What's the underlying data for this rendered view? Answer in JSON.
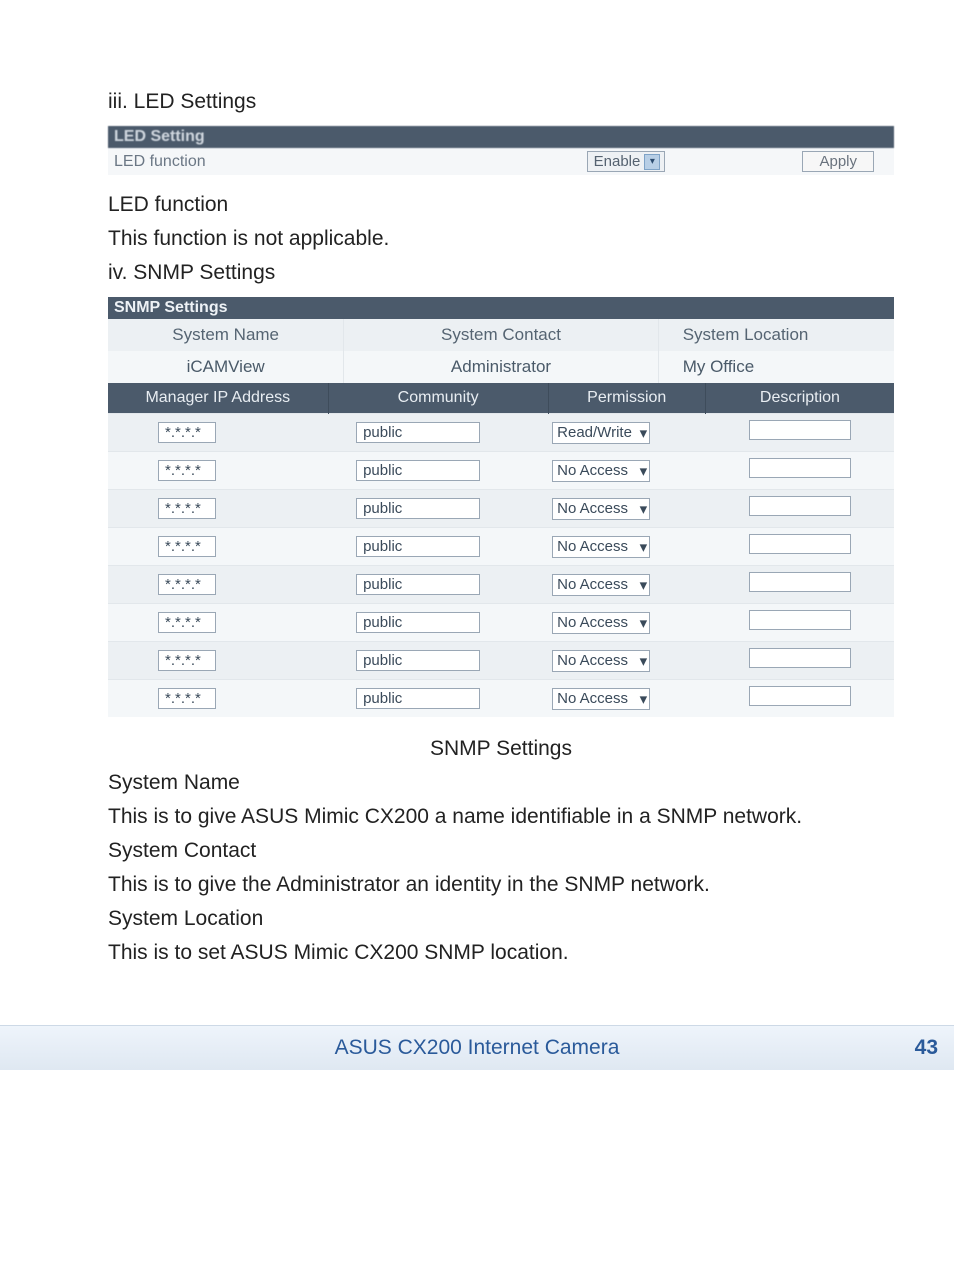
{
  "sections": {
    "led_heading": "iii. LED Settings",
    "snmp_heading": "iv. SNMP Settings"
  },
  "led_panel": {
    "header": "LED Setting",
    "row_label": "LED function",
    "select_value": "Enable",
    "apply_label": "Apply"
  },
  "led_text": {
    "subhead": "LED function",
    "body": "This function is not applicable."
  },
  "snmp_panel": {
    "title": "SNMP Settings",
    "sys_headers": {
      "name": "System Name",
      "contact": "System Contact",
      "location": "System Location"
    },
    "sys_values": {
      "name": "iCAMView",
      "contact": "Administrator",
      "location": "My Office"
    },
    "grid_headers": {
      "ip": "Manager IP Address",
      "community": "Community",
      "permission": "Permission",
      "description": "Description"
    },
    "rows": [
      {
        "ip": "*.*.*.*",
        "community": "public",
        "permission": "Read/Write",
        "description": ""
      },
      {
        "ip": "*.*.*.*",
        "community": "public",
        "permission": "No Access",
        "description": ""
      },
      {
        "ip": "*.*.*.*",
        "community": "public",
        "permission": "No Access",
        "description": ""
      },
      {
        "ip": "*.*.*.*",
        "community": "public",
        "permission": "No Access",
        "description": ""
      },
      {
        "ip": "*.*.*.*",
        "community": "public",
        "permission": "No Access",
        "description": ""
      },
      {
        "ip": "*.*.*.*",
        "community": "public",
        "permission": "No Access",
        "description": ""
      },
      {
        "ip": "*.*.*.*",
        "community": "public",
        "permission": "No Access",
        "description": ""
      },
      {
        "ip": "*.*.*.*",
        "community": "public",
        "permission": "No Access",
        "description": ""
      }
    ]
  },
  "snmp_caption": "SNMP Settings",
  "explain": {
    "sn_head": "System Name",
    "sn_body": "This is to give ASUS Mimic CX200 a name identifiable in a SNMP network.",
    "sc_head": "System Contact",
    "sc_body": "This is to give the Administrator an identity in the SNMP network.",
    "sl_head": "System Location",
    "sl_body": "This is to set ASUS Mimic CX200 SNMP location."
  },
  "footer": {
    "title": "ASUS CX200 Internet Camera",
    "page": "43"
  },
  "colors": {
    "panel_header_bg": "#4b5a6b",
    "panel_header_fg": "#e8edf2",
    "cell_bg_light": "#f4f7f9",
    "cell_bg_alt": "#ecf0f3",
    "footer_link": "#2a5a9a"
  }
}
